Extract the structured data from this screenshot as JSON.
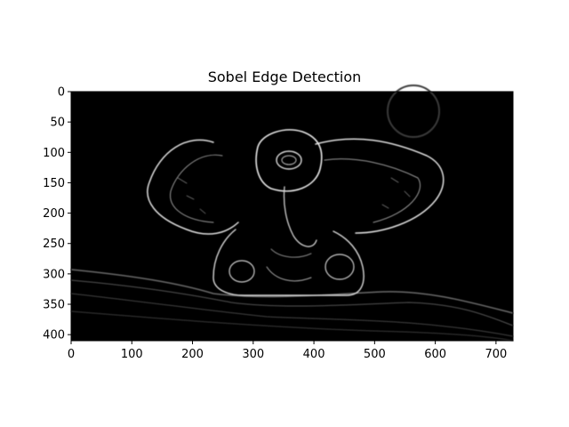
{
  "figure": {
    "title": "Sobel Edge Detection"
  },
  "axes": {
    "x_ticks": [
      "0",
      "100",
      "200",
      "300",
      "400",
      "500",
      "600",
      "700"
    ],
    "y_ticks": [
      "0",
      "50",
      "100",
      "150",
      "200",
      "250",
      "300",
      "350",
      "400"
    ],
    "x_tick_values": [
      0,
      100,
      200,
      300,
      400,
      500,
      600,
      700
    ],
    "y_tick_values": [
      0,
      50,
      100,
      150,
      200,
      250,
      300,
      350,
      400
    ],
    "xlim": [
      0,
      728
    ],
    "ylim": [
      410,
      0
    ]
  },
  "image": {
    "content": "grayscale Sobel edge-detection output of an elephant-deity figurine on dark background",
    "colors": {
      "background": "#000000",
      "edges": "#d8d8d8"
    }
  }
}
